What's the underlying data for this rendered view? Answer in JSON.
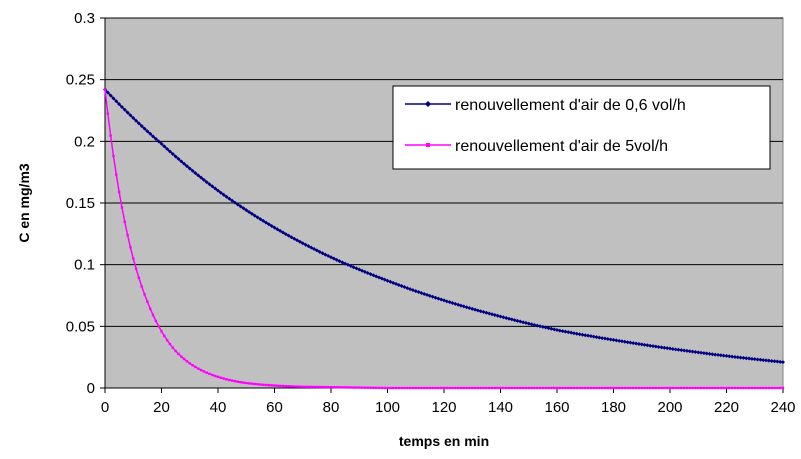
{
  "chart_data": {
    "type": "line",
    "xlabel": "temps en min",
    "ylabel": "C en mg/m3",
    "xlim": [
      0,
      240
    ],
    "ylim": [
      0,
      0.3
    ],
    "x_ticks": [
      "0",
      "20",
      "40",
      "60",
      "80",
      "100",
      "120",
      "140",
      "160",
      "180",
      "200",
      "220",
      "240"
    ],
    "y_ticks": [
      "0",
      "0.05",
      "0.1",
      "0.15",
      "0.2",
      "0.25",
      "0.3"
    ],
    "grid": "horizontal",
    "legend_position": "top-right",
    "plot_background": "#c0c0c0",
    "series": [
      {
        "name": "renouvellement d'air de 0,6 vol/h",
        "color": "#000080",
        "marker": "diamond",
        "x_range": [
          0,
          240
        ],
        "points": [
          {
            "x": 0,
            "y": 0.242
          },
          {
            "x": 20,
            "y": 0.198
          },
          {
            "x": 40,
            "y": 0.16
          },
          {
            "x": 60,
            "y": 0.13
          },
          {
            "x": 80,
            "y": 0.106
          },
          {
            "x": 100,
            "y": 0.087
          },
          {
            "x": 120,
            "y": 0.071
          },
          {
            "x": 140,
            "y": 0.058
          },
          {
            "x": 160,
            "y": 0.047
          },
          {
            "x": 180,
            "y": 0.039
          },
          {
            "x": 200,
            "y": 0.032
          },
          {
            "x": 220,
            "y": 0.026
          },
          {
            "x": 240,
            "y": 0.021
          }
        ]
      },
      {
        "name": "renouvellement d'air de 5vol/h",
        "color": "#ff00ff",
        "marker": "square",
        "x_range": [
          0,
          240
        ],
        "points": [
          {
            "x": 0,
            "y": 0.242
          },
          {
            "x": 5,
            "y": 0.159
          },
          {
            "x": 10,
            "y": 0.105
          },
          {
            "x": 15,
            "y": 0.07
          },
          {
            "x": 20,
            "y": 0.046
          },
          {
            "x": 25,
            "y": 0.03
          },
          {
            "x": 30,
            "y": 0.02
          },
          {
            "x": 40,
            "y": 0.009
          },
          {
            "x": 50,
            "y": 0.004
          },
          {
            "x": 60,
            "y": 0.002
          },
          {
            "x": 70,
            "y": 0.001
          },
          {
            "x": 100,
            "y": 0.0
          },
          {
            "x": 240,
            "y": 0.0
          }
        ]
      }
    ]
  }
}
